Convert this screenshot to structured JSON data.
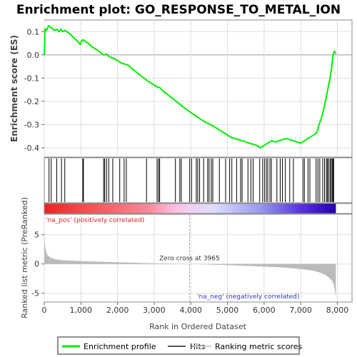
{
  "chart_data": {
    "type": "line",
    "title": "Enrichment plot: GO_RESPONSE_TO_METAL_ION",
    "xlabel": "Rank in Ordered Dataset",
    "ylabel_top": "Enrichment score (ES)",
    "ylabel_bottom": "Ranked list metric (PreRanked)",
    "xlim": [
      0,
      8400
    ],
    "x_ticks": [
      "0",
      "1,000",
      "2,000",
      "3,000",
      "4,000",
      "5,000",
      "6,000",
      "7,000",
      "8,000"
    ],
    "x_tick_values": [
      0,
      1000,
      2000,
      3000,
      4000,
      5000,
      6000,
      7000,
      8000
    ],
    "top_ylim": [
      -0.44,
      0.15
    ],
    "top_y_ticks": [
      "0.1",
      "0.0",
      "-0.1",
      "-0.2",
      "-0.3",
      "-0.4"
    ],
    "top_y_tick_values": [
      0.1,
      0.0,
      -0.1,
      -0.2,
      -0.3,
      -0.4
    ],
    "bottom_ylim": [
      -6.5,
      8.5
    ],
    "bottom_y_ticks": [
      "5",
      "0",
      "-5"
    ],
    "bottom_y_tick_values": [
      5,
      0,
      -5
    ],
    "series": [
      {
        "name": "Enrichment profile",
        "color": "#00ee00",
        "x": [
          0,
          20,
          60,
          120,
          200,
          280,
          350,
          400,
          450,
          500,
          560,
          620,
          700,
          800,
          900,
          980,
          1020,
          1060,
          1100,
          1200,
          1300,
          1400,
          1500,
          1600,
          1640,
          1700,
          1750,
          1800,
          1900,
          2000,
          2100,
          2200,
          2300,
          2400,
          2600,
          2800,
          3000,
          3100,
          3150,
          3200,
          3400,
          3600,
          3800,
          4000,
          4200,
          4400,
          4600,
          4800,
          5000,
          5100,
          5200,
          5300,
          5400,
          5500,
          5600,
          5700,
          5800,
          5900,
          6000,
          6050,
          6100,
          6150,
          6200,
          6300,
          6400,
          6500,
          6600,
          6700,
          6800,
          6900,
          7000,
          7100,
          7150,
          7200,
          7300,
          7400,
          7450,
          7500,
          7550,
          7600,
          7650,
          7700,
          7750,
          7800,
          7850,
          7880,
          7920,
          7960
        ],
        "y": [
          0.0,
          0.11,
          0.105,
          0.125,
          0.115,
          0.105,
          0.11,
          0.1,
          0.11,
          0.1,
          0.105,
          0.1,
          0.09,
          0.075,
          0.06,
          0.045,
          0.06,
          0.065,
          0.06,
          0.05,
          0.035,
          0.025,
          0.015,
          0.0,
          0.0,
          0.003,
          -0.005,
          -0.01,
          -0.015,
          -0.025,
          -0.035,
          -0.04,
          -0.045,
          -0.06,
          -0.085,
          -0.11,
          -0.13,
          -0.14,
          -0.14,
          -0.15,
          -0.175,
          -0.2,
          -0.225,
          -0.248,
          -0.27,
          -0.29,
          -0.305,
          -0.325,
          -0.345,
          -0.355,
          -0.36,
          -0.365,
          -0.37,
          -0.375,
          -0.38,
          -0.385,
          -0.39,
          -0.4,
          -0.39,
          -0.385,
          -0.38,
          -0.375,
          -0.37,
          -0.375,
          -0.37,
          -0.365,
          -0.36,
          -0.365,
          -0.37,
          -0.375,
          -0.38,
          -0.37,
          -0.365,
          -0.36,
          -0.35,
          -0.34,
          -0.33,
          -0.3,
          -0.28,
          -0.25,
          -0.22,
          -0.18,
          -0.14,
          -0.1,
          -0.05,
          0.0,
          0.015,
          0.005
        ]
      }
    ],
    "hits": [
      130,
      190,
      340,
      470,
      560,
      1050,
      1070,
      1620,
      1650,
      1700,
      1760,
      1870,
      2060,
      2180,
      2240,
      2790,
      3080,
      3120,
      3150,
      3580,
      3700,
      3740,
      3970,
      4020,
      4150,
      4190,
      4240,
      4350,
      4460,
      4500,
      4560,
      4600,
      4780,
      4950,
      5060,
      5120,
      5250,
      5360,
      5400,
      5560,
      5640,
      5700,
      5880,
      5960,
      6010,
      6060,
      6100,
      6160,
      6200,
      6350,
      6440,
      6500,
      6580,
      6700,
      6800,
      7060,
      7100,
      7200,
      7250,
      7420,
      7470,
      7520,
      7600,
      7650,
      7700,
      7730,
      7760,
      7800,
      7830,
      7860,
      7880,
      7900
    ],
    "ranked_metric": {
      "x": [
        0,
        20,
        50,
        100,
        200,
        300,
        500,
        800,
        1200,
        2000,
        3000,
        3965,
        5000,
        6000,
        6500,
        7000,
        7300,
        7500,
        7650,
        7750,
        7850,
        7900,
        7940,
        7960
      ],
      "y": [
        5.5,
        3.2,
        2.0,
        1.4,
        1.0,
        0.8,
        0.65,
        0.55,
        0.45,
        0.3,
        0.12,
        0.0,
        -0.2,
        -0.45,
        -0.6,
        -0.85,
        -1.1,
        -1.4,
        -1.8,
        -2.2,
        -2.8,
        -3.5,
        -4.8,
        -6.0
      ]
    },
    "annotations": {
      "zero_cross": "Zero cross at 3965",
      "zero_cross_x": 3965,
      "pos_label": "'na_pos' (positively correlated)",
      "neg_label": "'na_neg' (negatively correlated)"
    },
    "legend": {
      "placement": "bottom",
      "items": [
        {
          "label": "Enrichment profile",
          "color": "#00ee00"
        },
        {
          "label": "Hits",
          "color": "#555555"
        },
        {
          "label": "Ranking metric scores",
          "color": "#cccccc"
        }
      ]
    },
    "colors": {
      "pos_strong": "#ee2222",
      "pos_light": "#ffbbdd",
      "neg_light": "#ddddff",
      "neg_strong": "#4422dd",
      "metric_fill": "#bbbbbb",
      "grid": "#dddddd",
      "zero_line": "#aaaaaa"
    }
  }
}
